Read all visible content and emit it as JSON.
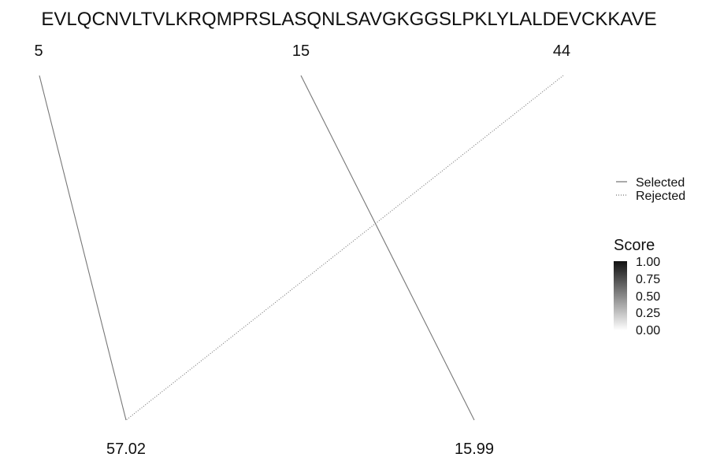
{
  "chart_data": {
    "type": "line",
    "title": "EVLQCNVLTVLKRQMPRSLASQNLSAVGKGGSLPKLYLALDEVCKKAVE",
    "top_labels": [
      "5",
      "15",
      "44"
    ],
    "bottom_labels": [
      "57.02",
      "15.99"
    ],
    "links": [
      {
        "from": "5",
        "to": "57.02",
        "status": "Selected"
      },
      {
        "from": "15",
        "to": "15.99",
        "status": "Selected"
      },
      {
        "from": "44",
        "to": "57.02",
        "status": "Rejected"
      }
    ],
    "line_color": "#777777",
    "legend": {
      "placement": "right",
      "items": [
        {
          "label": "Selected",
          "linetype": "solid"
        },
        {
          "label": "Rejected",
          "linetype": "dotted"
        }
      ]
    },
    "colorbar": {
      "title": "Score",
      "range": [
        0,
        1
      ],
      "ticks": [
        "1.00",
        "0.75",
        "0.50",
        "0.25",
        "0.00"
      ],
      "colors": [
        "#111111",
        "#ffffff"
      ]
    }
  }
}
